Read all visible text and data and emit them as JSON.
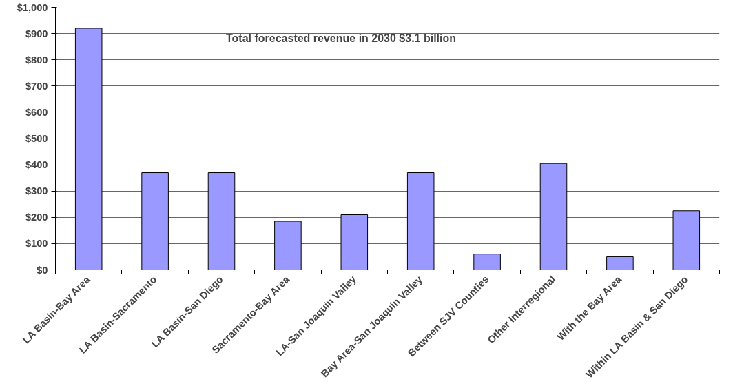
{
  "chart_data": {
    "type": "bar",
    "categories": [
      "LA Basin-Bay Area",
      "LA Basin-Sacramento",
      "LA Basin-San Diego",
      "Sacramento-Bay Area",
      "LA-San Joaquin Valley",
      "Bay Area-San Joaquin Valley",
      "Between SJV Counties",
      "Other Interregional",
      "With the Bay Area",
      "Within LA Basin & San Diego"
    ],
    "values": [
      920,
      370,
      370,
      185,
      210,
      370,
      60,
      405,
      50,
      225
    ],
    "color": "#9999ff",
    "ylim": [
      0,
      1000
    ],
    "yticks": [
      {
        "value": 0,
        "label": "$0"
      },
      {
        "value": 100,
        "label": "$100"
      },
      {
        "value": 200,
        "label": "$200"
      },
      {
        "value": 300,
        "label": "$300"
      },
      {
        "value": 400,
        "label": "$400"
      },
      {
        "value": 500,
        "label": "$500"
      },
      {
        "value": 600,
        "label": "$600"
      },
      {
        "value": 700,
        "label": "$700"
      },
      {
        "value": 800,
        "label": "$800"
      },
      {
        "value": 900,
        "label": "$900"
      },
      {
        "value": 1000,
        "label": "$1,000"
      }
    ],
    "grid": "y",
    "annotations": [
      "Total forecasted revenue in 2030 $3.1 billion"
    ]
  }
}
